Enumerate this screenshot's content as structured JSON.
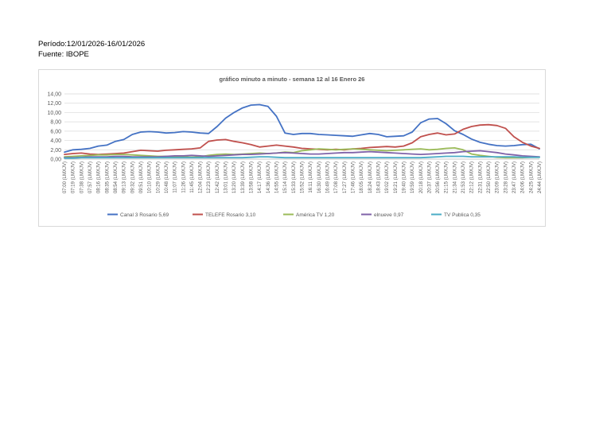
{
  "header": {
    "periodo": "Período:12/01/2026-16/01/2026",
    "fuente": "Fuente: IBOPE"
  },
  "chart_data": {
    "type": "line",
    "title": "gráfico minuto a minuto - semana 12 al 16 Enero 26",
    "xlabel": "",
    "ylabel": "",
    "ylim": [
      0,
      14
    ],
    "yticks": [
      "0,00",
      "2,00",
      "4,00",
      "6,00",
      "8,00",
      "10,00",
      "12,00",
      "14,00"
    ],
    "grid": true,
    "legend_position": "bottom",
    "x_tick_labels": [
      "07:00 (LMXJV)",
      "07:19 (LMXJV)",
      "07:38 (LMXJV)",
      "07:57 (LMXJV)",
      "08:16 (LMXJV)",
      "08:35 (LMXJV)",
      "08:54 (LMXJV)",
      "09:13 (LMXJV)",
      "09:32 (LMXJV)",
      "09:51 (LMXJV)",
      "10:10 (LMXJV)",
      "10:29 (LMXJV)",
      "10:48 (LMXJV)",
      "11:07 (LMXJV)",
      "11:26 (LMXJV)",
      "11:45 (LMXJV)",
      "12:04 (LMXJV)",
      "12:23 (LMXJV)",
      "12:42 (LMXJV)",
      "13:01 (LMXJV)",
      "13:20 (LMXJV)",
      "13:39 (LMXJV)",
      "13:58 (LMXJV)",
      "14:17 (LMXJV)",
      "14:36 (LMXJV)",
      "14:55 (LMXJV)",
      "15:14 (LMXJV)",
      "15:33 (LMXJV)",
      "15:52 (LMXJV)",
      "16:11 (LMXJV)",
      "16:30 (LMXJV)",
      "16:49 (LMXJV)",
      "17:08 (LMXJV)",
      "17:27 (LMXJV)",
      "17:46 (LMXJV)",
      "18:05 (LMXJV)",
      "18:24 (LMXJV)",
      "18:43 (LMXJV)",
      "19:02 (LMXJV)",
      "19:21 (LMXJV)",
      "19:40 (LMXJV)",
      "19:59 (LMXJV)",
      "20:18 (LMXJV)",
      "20:37 (LMXJV)",
      "20:56 (LMXJV)",
      "21:15 (LMXJV)",
      "21:34 (LMXJV)",
      "21:53 (LMXJV)",
      "22:12 (LMXJV)",
      "22:31 (LMXJV)",
      "22:50 (LMXJV)",
      "23:09 (LMXJV)",
      "23:28 (LMXJV)",
      "23:47 (LMXJV)",
      "24:06 (LMXJV)",
      "24:25 (LMXJV)",
      "24:44 (LMXJV)"
    ],
    "series": [
      {
        "name": "Canal 3 Rosario 5,69",
        "color": "#4472c4",
        "values": [
          1.5,
          2.0,
          2.1,
          2.3,
          2.8,
          3.0,
          3.8,
          4.2,
          5.3,
          5.8,
          5.9,
          5.8,
          5.6,
          5.7,
          5.9,
          5.8,
          5.6,
          5.5,
          7.0,
          8.8,
          10.0,
          11.0,
          11.6,
          11.7,
          11.3,
          9.2,
          5.6,
          5.3,
          5.5,
          5.5,
          5.3,
          5.2,
          5.1,
          5.0,
          4.9,
          5.2,
          5.5,
          5.3,
          4.8,
          4.9,
          5.0,
          5.8,
          7.8,
          8.6,
          8.7,
          7.6,
          6.1,
          5.3,
          4.3,
          3.6,
          3.2,
          2.9,
          2.8,
          2.9,
          3.1,
          3.2,
          2.2
        ]
      },
      {
        "name": "TELEFE Rosario 3,10",
        "color": "#c0504d",
        "values": [
          1.0,
          1.2,
          1.3,
          1.1,
          1.0,
          1.1,
          1.2,
          1.3,
          1.6,
          1.9,
          1.8,
          1.7,
          1.9,
          2.0,
          2.1,
          2.2,
          2.4,
          3.8,
          4.1,
          4.2,
          3.8,
          3.5,
          3.1,
          2.6,
          2.8,
          3.0,
          2.8,
          2.6,
          2.3,
          2.2,
          2.1,
          2.0,
          2.1,
          2.0,
          2.2,
          2.3,
          2.5,
          2.6,
          2.7,
          2.6,
          2.8,
          3.5,
          4.8,
          5.3,
          5.6,
          5.2,
          5.4,
          6.4,
          7.0,
          7.3,
          7.4,
          7.2,
          6.6,
          4.8,
          3.6,
          2.8,
          2.3
        ]
      },
      {
        "name": "América TV 1,20",
        "color": "#9bbb59",
        "values": [
          0.5,
          0.6,
          0.7,
          0.8,
          0.9,
          0.9,
          1.0,
          1.0,
          0.9,
          0.8,
          0.7,
          0.6,
          0.6,
          0.5,
          0.5,
          0.4,
          0.5,
          0.8,
          1.0,
          1.1,
          1.0,
          1.1,
          1.2,
          1.3,
          1.2,
          1.3,
          1.5,
          1.4,
          1.8,
          2.0,
          2.2,
          2.1,
          2.0,
          2.1,
          2.2,
          2.1,
          2.0,
          1.9,
          1.8,
          1.9,
          2.0,
          2.1,
          2.2,
          2.0,
          2.1,
          2.3,
          2.4,
          2.0,
          1.1,
          0.8,
          0.6,
          0.4,
          0.3,
          0.3,
          0.3,
          0.4,
          0.4
        ]
      },
      {
        "name": "elnueve 0,97",
        "color": "#7f62a8",
        "values": [
          0.3,
          0.3,
          0.4,
          0.5,
          0.5,
          0.5,
          0.6,
          0.6,
          0.5,
          0.5,
          0.5,
          0.5,
          0.6,
          0.7,
          0.7,
          0.8,
          0.7,
          0.6,
          0.7,
          0.8,
          0.9,
          1.0,
          1.0,
          1.1,
          1.2,
          1.3,
          1.4,
          1.3,
          1.2,
          1.1,
          1.1,
          1.2,
          1.3,
          1.4,
          1.4,
          1.5,
          1.6,
          1.5,
          1.4,
          1.3,
          1.2,
          1.1,
          1.0,
          1.1,
          1.2,
          1.3,
          1.4,
          1.6,
          1.7,
          1.8,
          1.6,
          1.4,
          1.1,
          0.9,
          0.7,
          0.6,
          0.5
        ]
      },
      {
        "name": "TV Publica 0,35",
        "color": "#4bacc6",
        "values": [
          0.2,
          0.2,
          0.3,
          0.3,
          0.3,
          0.3,
          0.3,
          0.3,
          0.3,
          0.3,
          0.3,
          0.3,
          0.3,
          0.3,
          0.3,
          0.3,
          0.3,
          0.3,
          0.3,
          0.3,
          0.3,
          0.3,
          0.4,
          0.5,
          0.5,
          0.4,
          0.3,
          0.3,
          0.3,
          0.3,
          0.3,
          0.3,
          0.3,
          0.3,
          0.3,
          0.3,
          0.3,
          0.3,
          0.3,
          0.3,
          0.3,
          0.3,
          0.3,
          0.4,
          0.5,
          0.6,
          0.6,
          0.6,
          0.5,
          0.5,
          0.5,
          0.5,
          0.5,
          0.5,
          0.4,
          0.4,
          0.4
        ]
      }
    ]
  }
}
